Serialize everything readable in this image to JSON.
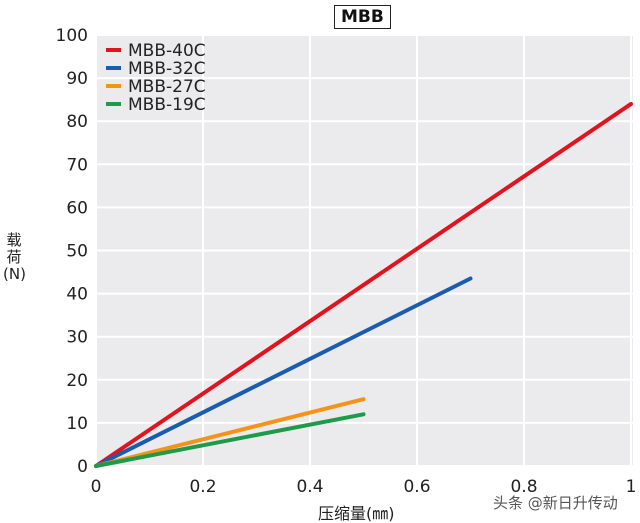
{
  "chart_data": {
    "type": "line",
    "title": "MBB",
    "xlabel": "压缩量(㎜)",
    "ylabel": "载荷(N)",
    "xlim": [
      0,
      1
    ],
    "ylim": [
      0,
      100
    ],
    "xticks": [
      "0",
      "0.2",
      "0.4",
      "0.6",
      "0.8",
      "1"
    ],
    "yticks": [
      "0",
      "10",
      "20",
      "30",
      "40",
      "50",
      "60",
      "70",
      "80",
      "90",
      "100"
    ],
    "grid": true,
    "legend_position": "top-left",
    "series": [
      {
        "name": "MBB-40C",
        "color": "#e0141e",
        "x": [
          0,
          1
        ],
        "y": [
          0,
          84
        ]
      },
      {
        "name": "MBB-32C",
        "color": "#1a5cb0",
        "x": [
          0,
          0.7
        ],
        "y": [
          0,
          43.5
        ]
      },
      {
        "name": "MBB-27C",
        "color": "#f39419",
        "x": [
          0,
          0.5
        ],
        "y": [
          0,
          15.5
        ]
      },
      {
        "name": "MBB-19C",
        "color": "#1e9a4a",
        "x": [
          0,
          0.5
        ],
        "y": [
          0,
          12
        ]
      }
    ]
  },
  "watermark": "头条 @新日升传动"
}
